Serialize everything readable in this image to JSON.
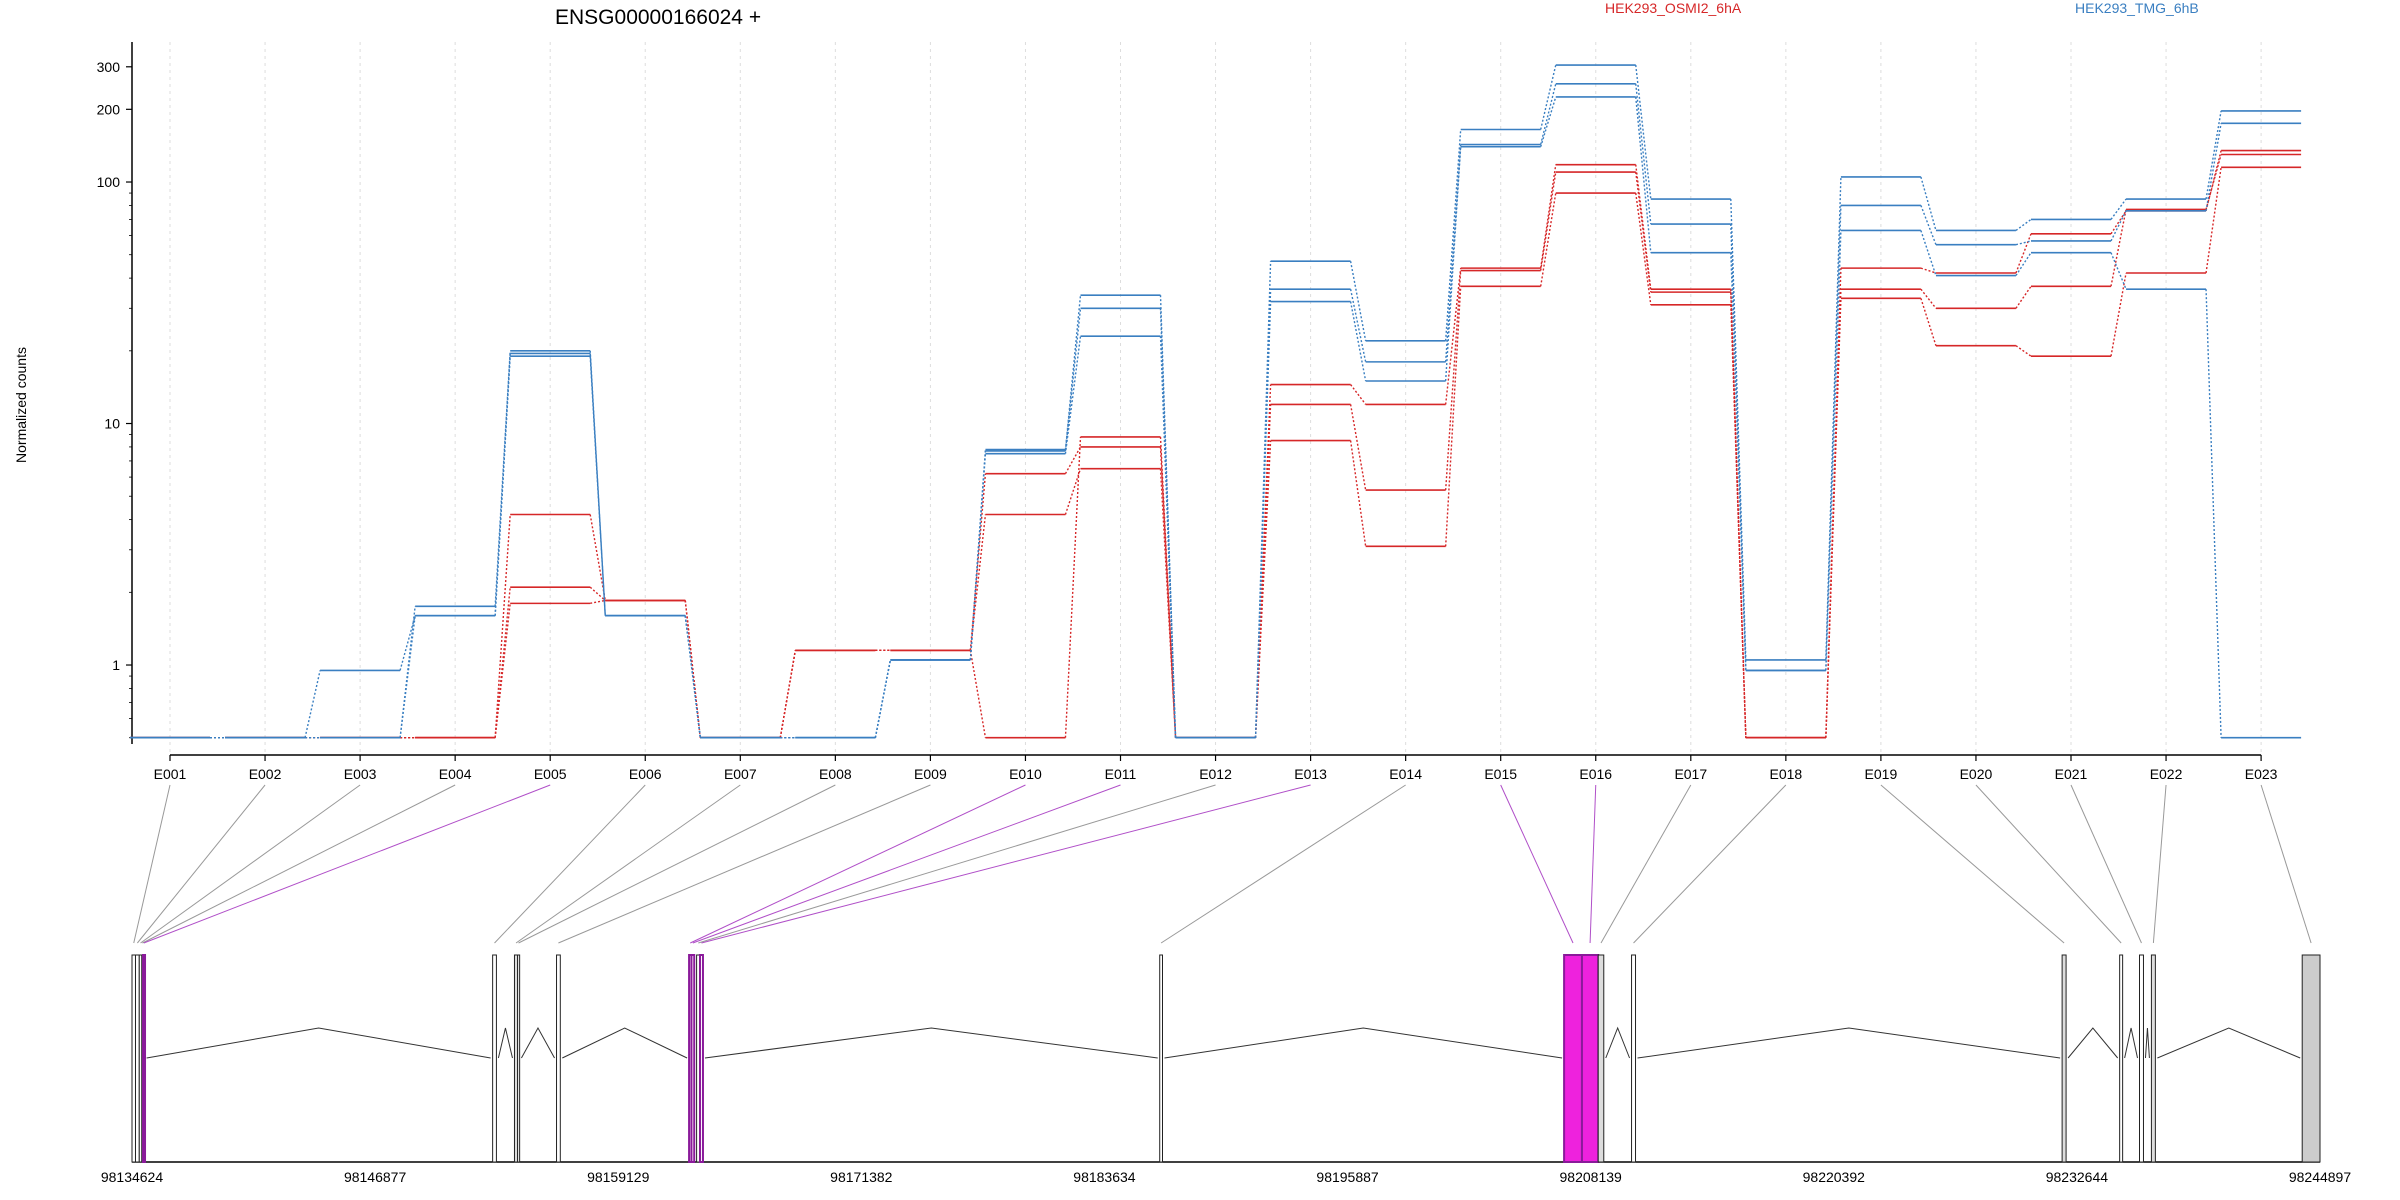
{
  "chart_data": {
    "type": "line",
    "title": "ENSG00000166024 +",
    "ylabel": "Normalized counts",
    "xlabel": "",
    "yscale": "log",
    "ylim": [
      0.48,
      380
    ],
    "grid": "vertical dashed at each exon",
    "legend_placement": "top",
    "y_ticks": [
      1,
      10,
      100,
      200,
      300
    ],
    "y_tick_labels": [
      "1",
      "10",
      "100",
      "200",
      "300"
    ],
    "categories": [
      "E001",
      "E002",
      "E003",
      "E004",
      "E005",
      "E006",
      "E007",
      "E008",
      "E009",
      "E010",
      "E011",
      "E012",
      "E013",
      "E014",
      "E015",
      "E016",
      "E017",
      "E018",
      "E019",
      "E020",
      "E021",
      "E022",
      "E023"
    ],
    "legend": [
      {
        "name": "HEK293_OSMI2_6hA",
        "color": "#d62728"
      },
      {
        "name": "HEK293_TMG_6hB",
        "color": "#3a7fc1"
      }
    ],
    "series": [
      {
        "name": "HEK293_OSMI2_6hA",
        "color": "#d62728",
        "values": [
          0.5,
          0.5,
          0.5,
          0.5,
          4.2,
          1.85,
          0.5,
          1.15,
          1.15,
          4.2,
          6.5,
          0.5,
          8.5,
          3.1,
          37,
          90,
          31,
          0.5,
          33,
          21,
          19,
          42,
          115
        ]
      },
      {
        "name": "HEK293_OSMI2_6hA",
        "color": "#d62728",
        "values": [
          0.5,
          0.5,
          0.5,
          0.5,
          2.1,
          1.85,
          0.5,
          1.15,
          1.15,
          6.2,
          8.0,
          0.5,
          12,
          5.3,
          43,
          110,
          35,
          0.5,
          36,
          30,
          37,
          77,
          130
        ]
      },
      {
        "name": "HEK293_OSMI2_6hA",
        "color": "#d62728",
        "values": [
          0.5,
          0.5,
          0.5,
          0.5,
          1.8,
          1.85,
          0.5,
          1.15,
          1.15,
          0.5,
          8.8,
          0.5,
          14.5,
          12,
          44,
          118,
          36,
          0.5,
          44,
          42,
          61,
          76,
          135
        ]
      },
      {
        "name": "HEK293_TMG_6hB",
        "color": "#3a7fc1",
        "values": [
          0.5,
          0.5,
          0.95,
          1.6,
          19,
          1.6,
          0.5,
          0.5,
          1.05,
          7.5,
          23,
          0.5,
          32,
          15,
          140,
          225,
          51,
          0.95,
          63,
          41,
          51,
          36,
          0.5
        ]
      },
      {
        "name": "HEK293_TMG_6hB",
        "color": "#3a7fc1",
        "values": [
          0.5,
          0.5,
          0.5,
          1.6,
          19.5,
          1.6,
          0.5,
          0.5,
          1.05,
          7.7,
          30,
          0.5,
          36,
          18,
          143,
          255,
          67,
          0.95,
          80,
          55,
          57,
          76,
          175
        ]
      },
      {
        "name": "HEK293_TMG_6hB",
        "color": "#3a7fc1",
        "values": [
          0.5,
          0.5,
          0.5,
          1.75,
          20,
          1.6,
          0.5,
          0.5,
          1.05,
          7.8,
          34,
          0.5,
          47,
          22,
          165,
          305,
          85,
          1.05,
          105,
          63,
          70,
          85,
          197
        ]
      }
    ],
    "gene_model": {
      "coord_ticks": [
        "98134624",
        "98146877",
        "98159129",
        "98171382",
        "98183634",
        "98195887",
        "98208139",
        "98220392",
        "98232644",
        "98244897"
      ],
      "coord_start": 98134624,
      "coord_end": 98244897,
      "exons": [
        {
          "id": "E001",
          "start": 98134624,
          "end": 98134800,
          "fill": "#ffffff",
          "highlight": false
        },
        {
          "id": "E002",
          "start": 98134800,
          "end": 98134990,
          "fill": "#ffffff",
          "highlight": false
        },
        {
          "id": "E003",
          "start": 98134990,
          "end": 98135120,
          "fill": "#ffffff",
          "highlight": false
        },
        {
          "id": "E004",
          "start": 98135120,
          "end": 98135180,
          "fill": "#ffffff",
          "highlight": false
        },
        {
          "id": "E005",
          "start": 98135180,
          "end": 98135260,
          "fill": "#ffffff",
          "highlight": true
        },
        {
          "id": "E006",
          "start": 98152800,
          "end": 98152990,
          "fill": "#ffffff",
          "highlight": false
        },
        {
          "id": "E007",
          "start": 98153900,
          "end": 98154060,
          "fill": "#dddddd",
          "highlight": false
        },
        {
          "id": "E008",
          "start": 98154060,
          "end": 98154150,
          "fill": "#ffffff",
          "highlight": false
        },
        {
          "id": "E009",
          "start": 98156020,
          "end": 98156210,
          "fill": "#ffffff",
          "highlight": false
        },
        {
          "id": "E010",
          "start": 98162700,
          "end": 98162820,
          "fill": "#ffffff",
          "highlight": true
        },
        {
          "id": "E011",
          "start": 98162820,
          "end": 98162960,
          "fill": "#ffffff",
          "highlight": true
        },
        {
          "id": "E012",
          "start": 98163080,
          "end": 98163250,
          "fill": "#ffffff",
          "highlight": false
        },
        {
          "id": "E013",
          "start": 98163250,
          "end": 98163400,
          "fill": "#ffffff",
          "highlight": true
        },
        {
          "id": "E014",
          "start": 98186420,
          "end": 98186560,
          "fill": "#ffffff",
          "highlight": false
        },
        {
          "id": "E015",
          "start": 98206800,
          "end": 98207700,
          "fill": "#ee22dd",
          "highlight": true
        },
        {
          "id": "E016",
          "start": 98207700,
          "end": 98208520,
          "fill": "#ee22dd",
          "highlight": true
        },
        {
          "id": "E017",
          "start": 98208520,
          "end": 98208800,
          "fill": "#dddddd",
          "highlight": false
        },
        {
          "id": "E018",
          "start": 98210200,
          "end": 98210400,
          "fill": "#ffffff",
          "highlight": false
        },
        {
          "id": "E019",
          "start": 98231900,
          "end": 98232100,
          "fill": "#dddddd",
          "highlight": false
        },
        {
          "id": "E020",
          "start": 98234800,
          "end": 98234950,
          "fill": "#ffffff",
          "highlight": false
        },
        {
          "id": "E021",
          "start": 98235800,
          "end": 98236000,
          "fill": "#ffffff",
          "highlight": false
        },
        {
          "id": "E022",
          "start": 98236400,
          "end": 98236600,
          "fill": "#dddddd",
          "highlight": false
        },
        {
          "id": "E023",
          "start": 98244000,
          "end": 98244897,
          "fill": "#cccccc",
          "highlight": false
        }
      ],
      "introns": [
        {
          "from": "E005",
          "to": "E006"
        },
        {
          "from": "E006",
          "to": "E007"
        },
        {
          "from": "E008",
          "to": "E009"
        },
        {
          "from": "E009",
          "to": "E010"
        },
        {
          "from": "E013",
          "to": "E014"
        },
        {
          "from": "E014",
          "to": "E015"
        },
        {
          "from": "E017",
          "to": "E018"
        },
        {
          "from": "E018",
          "to": "E019"
        },
        {
          "from": "E019",
          "to": "E020"
        },
        {
          "from": "E020",
          "to": "E021"
        },
        {
          "from": "E021",
          "to": "E022"
        },
        {
          "from": "E022",
          "to": "E023"
        }
      ]
    }
  }
}
